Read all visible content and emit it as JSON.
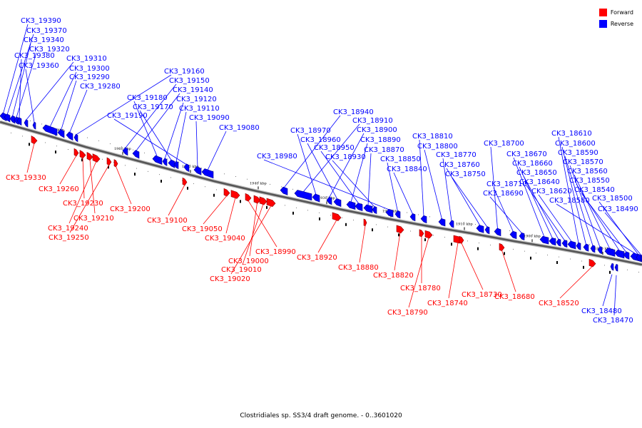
{
  "legend": {
    "forward_label": "Forward",
    "reverse_label": "Reverse",
    "forward_color": "#ff0000",
    "reverse_color": "#0000ff"
  },
  "caption": "Clostridiales sp. SS3/4 draft genome. - 0..3601020",
  "position_labels": [
    "1970 kbp",
    "1960 kbp",
    "1950 kbp",
    "1940 kbp",
    "1930 kbp",
    "1920 kbp",
    "1910 kbp",
    "1900 kbp",
    "1890 kbp"
  ],
  "reverse_genes": [
    "CK3_19390",
    "CK3_19370",
    "CK3_19340",
    "CK3_19320",
    "CK3_19380",
    "CK3_19310",
    "CK3_19360",
    "CK3_19300",
    "CK3_19290",
    "CK3_19280",
    "CK3_19160",
    "CK3_19150",
    "CK3_19140",
    "CK3_19180",
    "CK3_19120",
    "CK3_19170",
    "CK3_19110",
    "CK3_19190",
    "CK3_19090",
    "CK3_19080",
    "CK3_18940",
    "CK3_18910",
    "CK3_18970",
    "CK3_18900",
    "CK3_18960",
    "CK3_18890",
    "CK3_18950",
    "CK3_18870",
    "CK3_18930",
    "CK3_18980",
    "CK3_18850",
    "CK3_18840",
    "CK3_18810",
    "CK3_18800",
    "CK3_18770",
    "CK3_18760",
    "CK3_18750",
    "CK3_18700",
    "CK3_18710",
    "CK3_18690",
    "CK3_18670",
    "CK3_18660",
    "CK3_18650",
    "CK3_18640",
    "CK3_18620",
    "CK3_18610",
    "CK3_18600",
    "CK3_18590",
    "CK3_18570",
    "CK3_18560",
    "CK3_18550",
    "CK3_18540",
    "CK3_18580",
    "CK3_18500",
    "CK3_18490",
    "CK3_18480",
    "CK3_18470"
  ],
  "forward_genes": [
    "CK3_19330",
    "CK3_19260",
    "CK3_19230",
    "CK3_19210",
    "CK3_19240",
    "CK3_19250",
    "CK3_19200",
    "CK3_19100",
    "CK3_19050",
    "CK3_19040",
    "CK3_18990",
    "CK3_19000",
    "CK3_19010",
    "CK3_19020",
    "CK3_18920",
    "CK3_18880",
    "CK3_18820",
    "CK3_18780",
    "CK3_18790",
    "CK3_18740",
    "CK3_18730",
    "CK3_18680",
    "CK3_18520"
  ]
}
